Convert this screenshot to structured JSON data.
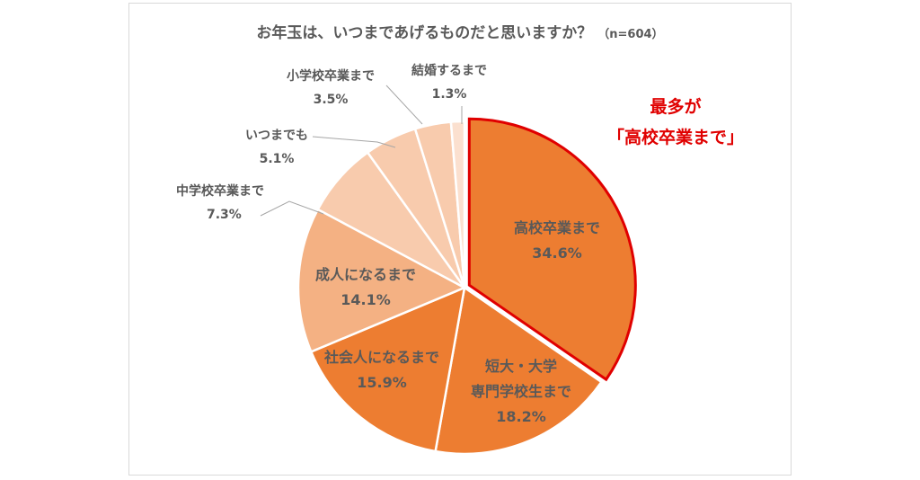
{
  "chart_data": {
    "type": "pie",
    "title": "お年玉は、いつまであげるものだと思いますか？",
    "sample": "（n=604）",
    "start": "top",
    "direction": "clockwise",
    "slices": [
      {
        "label": "高校卒業まで",
        "value": 34.6,
        "value_label": "34.6%",
        "color": "#ED7D31",
        "highlight": true
      },
      {
        "label_lines": [
          "短大・大学",
          "専門学校生まで"
        ],
        "value": 18.2,
        "value_label": "18.2%",
        "color": "#ED7D31"
      },
      {
        "label": "社会人になるまで",
        "value": 15.9,
        "value_label": "15.9%",
        "color": "#ED7D31"
      },
      {
        "label": "成人になるまで",
        "value": 14.1,
        "value_label": "14.1%",
        "color": "#F4B183"
      },
      {
        "label": "中学校卒業まで",
        "value": 7.3,
        "value_label": "7.3%",
        "color": "#F8CBAD"
      },
      {
        "label": "いつまでも",
        "value": 5.1,
        "value_label": "5.1%",
        "color": "#F8CBAD"
      },
      {
        "label": "小学校卒業まで",
        "value": 3.5,
        "value_label": "3.5%",
        "color": "#F8CBAD"
      },
      {
        "label": "結婚するまで",
        "value": 1.3,
        "value_label": "1.3%",
        "color": "#FBE0CF"
      }
    ],
    "callout": {
      "line1": "最多が",
      "line2": "「高校卒業まで」",
      "color": "#E00000"
    }
  }
}
